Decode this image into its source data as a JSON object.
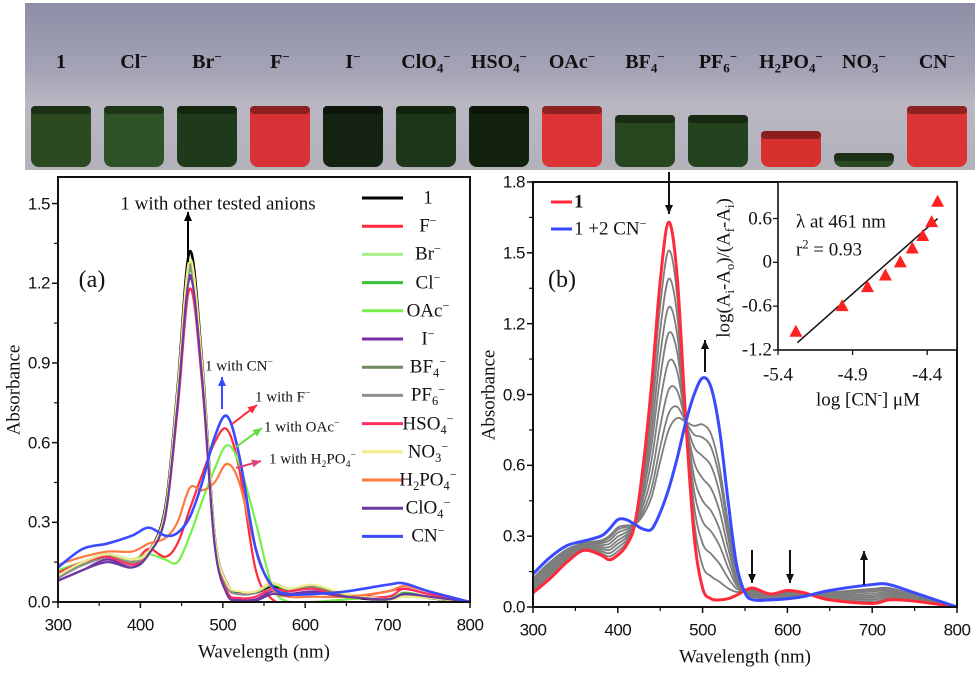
{
  "photo": {
    "tubes": [
      {
        "label": [
          {
            "t": "1"
          }
        ],
        "color": "#2b4a22"
      },
      {
        "label": [
          {
            "t": "Cl"
          },
          {
            "sup": "−"
          }
        ],
        "color": "#2f5226"
      },
      {
        "label": [
          {
            "t": "Br"
          },
          {
            "sup": "−"
          }
        ],
        "color": "#1f3a1a"
      },
      {
        "label": [
          {
            "t": "F"
          },
          {
            "sup": "−"
          }
        ],
        "color": "#d83236"
      },
      {
        "label": [
          {
            "t": "I"
          },
          {
            "sup": "−"
          }
        ],
        "color": "#142212"
      },
      {
        "label": [
          {
            "t": "ClO"
          },
          {
            "sub": "4"
          },
          {
            "sup": "−"
          }
        ],
        "color": "#1d3518"
      },
      {
        "label": [
          {
            "t": "HSO"
          },
          {
            "sub": "4"
          },
          {
            "sup": "−"
          }
        ],
        "color": "#13210f"
      },
      {
        "label": [
          {
            "t": "OAc"
          },
          {
            "sup": "−"
          }
        ],
        "color": "#dc3434"
      },
      {
        "label": [
          {
            "t": "BF"
          },
          {
            "sub": "4"
          },
          {
            "sup": "−"
          }
        ],
        "color": "#27461f"
      },
      {
        "label": [
          {
            "t": "PF"
          },
          {
            "sub": "6"
          },
          {
            "sup": "−"
          }
        ],
        "color": "#24421d"
      },
      {
        "label": [
          {
            "t": "H"
          },
          {
            "sub": "2"
          },
          {
            "t": "PO"
          },
          {
            "sub": "4"
          },
          {
            "sup": "−"
          }
        ],
        "color": "#d6302f"
      },
      {
        "label": [
          {
            "t": "NO"
          },
          {
            "sub": "3"
          },
          {
            "sup": "−"
          }
        ],
        "color": "#2a4a22"
      },
      {
        "label": [
          {
            "t": "CN"
          },
          {
            "sup": "−"
          }
        ],
        "color": "#da3434"
      }
    ]
  },
  "chart_data": [
    {
      "type": "line",
      "panel_label": "(a)",
      "xlabel": "Wavelength (nm)",
      "ylabel": "Absorbance",
      "xlim": [
        300,
        800
      ],
      "ylim": [
        0,
        1.6
      ],
      "xticks": [
        300,
        400,
        500,
        600,
        700,
        800
      ],
      "yticks": [
        "0.0",
        "0.3",
        "0.6",
        "0.9",
        "1.2",
        "1.5"
      ],
      "legend_position": "right",
      "x": [
        300,
        330,
        360,
        390,
        410,
        430,
        445,
        460,
        475,
        490,
        505,
        520,
        540,
        560,
        580,
        610,
        650,
        700,
        720,
        750,
        800
      ],
      "series": [
        {
          "name": [
            {
              "t": "1"
            }
          ],
          "color": "#000000",
          "values": [
            0.1,
            0.14,
            0.17,
            0.15,
            0.19,
            0.35,
            0.8,
            1.32,
            0.9,
            0.25,
            0.07,
            0.035,
            0.035,
            0.06,
            0.045,
            0.055,
            0.02,
            0.01,
            0.03,
            0.015,
            0
          ]
        },
        {
          "name": [
            {
              "t": "F"
            },
            {
              "sup": "−"
            }
          ],
          "color": "#ff2a3a",
          "values": [
            0.11,
            0.15,
            0.17,
            0.15,
            0.2,
            0.17,
            0.22,
            0.35,
            0.48,
            0.6,
            0.65,
            0.5,
            0.12,
            0.01,
            0,
            0,
            0.01,
            0.04,
            0.05,
            0.03,
            0
          ]
        },
        {
          "name": [
            {
              "t": "Br"
            },
            {
              "sup": "−"
            }
          ],
          "color": "#a6ee86",
          "values": [
            0.09,
            0.15,
            0.18,
            0.16,
            0.19,
            0.34,
            0.78,
            1.28,
            0.88,
            0.24,
            0.06,
            0.03,
            0.04,
            0.07,
            0.05,
            0.06,
            0.03,
            0.01,
            0.03,
            0.02,
            0
          ]
        },
        {
          "name": [
            {
              "t": "Cl"
            },
            {
              "sup": "−"
            }
          ],
          "color": "#35c035",
          "values": [
            0.1,
            0.14,
            0.17,
            0.15,
            0.18,
            0.33,
            0.76,
            1.25,
            0.86,
            0.23,
            0.06,
            0.03,
            0.035,
            0.065,
            0.045,
            0.055,
            0.025,
            0.01,
            0.035,
            0.02,
            0
          ]
        },
        {
          "name": [
            {
              "t": "OAc"
            },
            {
              "sup": "−"
            }
          ],
          "color": "#78f04c",
          "values": [
            0.12,
            0.15,
            0.17,
            0.16,
            0.18,
            0.16,
            0.15,
            0.25,
            0.38,
            0.5,
            0.59,
            0.52,
            0.3,
            0.06,
            0,
            0,
            0.01,
            0.02,
            0.03,
            0.02,
            0
          ]
        },
        {
          "name": [
            {
              "t": "I"
            },
            {
              "sup": "−"
            }
          ],
          "color": "#7b2fa6",
          "values": [
            0.08,
            0.12,
            0.16,
            0.13,
            0.18,
            0.33,
            0.75,
            1.23,
            0.85,
            0.22,
            0.04,
            0.01,
            0.01,
            0.04,
            0.03,
            0.04,
            0.02,
            0.01,
            0.03,
            0.02,
            0
          ]
        },
        {
          "name": [
            {
              "t": "BF"
            },
            {
              "sub": "4"
            },
            {
              "sup": "−"
            }
          ],
          "color": "#6e8a5e",
          "values": [
            0.1,
            0.15,
            0.18,
            0.16,
            0.19,
            0.34,
            0.78,
            1.27,
            0.88,
            0.24,
            0.06,
            0.03,
            0.04,
            0.07,
            0.05,
            0.06,
            0.03,
            0.01,
            0.02,
            0.015,
            0
          ]
        },
        {
          "name": [
            {
              "t": "PF"
            },
            {
              "sub": "6"
            },
            {
              "sup": "−"
            }
          ],
          "color": "#8f8f8f",
          "values": [
            0.09,
            0.14,
            0.17,
            0.15,
            0.19,
            0.34,
            0.77,
            1.26,
            0.87,
            0.23,
            0.06,
            0.03,
            0.035,
            0.07,
            0.05,
            0.06,
            0.03,
            0.01,
            0.025,
            0.015,
            0
          ]
        },
        {
          "name": [
            {
              "t": "HSO"
            },
            {
              "sub": "4"
            },
            {
              "sup": "−"
            }
          ],
          "color": "#ff3060",
          "values": [
            0.11,
            0.15,
            0.17,
            0.14,
            0.18,
            0.32,
            0.72,
            1.18,
            0.82,
            0.22,
            0.04,
            0.015,
            0.02,
            0.05,
            0.04,
            0.05,
            0.02,
            0.02,
            0.05,
            0.03,
            0
          ]
        },
        {
          "name": [
            {
              "t": "NO"
            },
            {
              "sub": "3"
            },
            {
              "sup": "−"
            }
          ],
          "color": "#f2ee8c",
          "values": [
            0.1,
            0.15,
            0.18,
            0.16,
            0.19,
            0.34,
            0.79,
            1.29,
            0.89,
            0.25,
            0.07,
            0.04,
            0.04,
            0.07,
            0.05,
            0.065,
            0.03,
            0.01,
            0.02,
            0.015,
            0
          ]
        },
        {
          "name": [
            {
              "t": "H"
            },
            {
              "sub": "2"
            },
            {
              "t": "PO"
            },
            {
              "sub": "4"
            },
            {
              "sup": "−"
            }
          ],
          "color": "#ff7a40",
          "values": [
            0.14,
            0.17,
            0.19,
            0.19,
            0.22,
            0.24,
            0.3,
            0.43,
            0.42,
            0.45,
            0.52,
            0.45,
            0.2,
            0.05,
            0.02,
            0.02,
            0.02,
            0.04,
            0.06,
            0.04,
            0
          ]
        },
        {
          "name": [
            {
              "t": "ClO"
            },
            {
              "sub": "4"
            },
            {
              "sup": "−"
            }
          ],
          "color": "#6a3aa0",
          "values": [
            0.08,
            0.12,
            0.15,
            0.13,
            0.18,
            0.32,
            0.74,
            1.22,
            0.84,
            0.22,
            0.03,
            0.005,
            0.005,
            0.03,
            0.025,
            0.035,
            0.02,
            0.01,
            0.03,
            0.02,
            0
          ]
        },
        {
          "name": [
            {
              "t": "CN"
            },
            {
              "sup": "−"
            }
          ],
          "color": "#3a4aff",
          "values": [
            0.13,
            0.2,
            0.22,
            0.25,
            0.28,
            0.25,
            0.26,
            0.32,
            0.45,
            0.62,
            0.7,
            0.55,
            0.2,
            0.06,
            0.03,
            0.03,
            0.04,
            0.065,
            0.07,
            0.04,
            0
          ]
        }
      ],
      "annotations": [
        {
          "text": [
            {
              "t": "1 with other tested anions"
            }
          ],
          "color": "#000000"
        },
        {
          "text": [
            {
              "t": "1 with CN"
            },
            {
              "sup": "−"
            }
          ],
          "color": "#3a4aff"
        },
        {
          "text": [
            {
              "t": "1 with F"
            },
            {
              "sup": "−"
            }
          ],
          "color": "#ff2a3a"
        },
        {
          "text": [
            {
              "t": "1 with OAc"
            },
            {
              "sup": "−"
            }
          ],
          "color": "#60e040"
        },
        {
          "text": [
            {
              "t": "1 with H"
            },
            {
              "sub": "2"
            },
            {
              "t": "PO"
            },
            {
              "sub": "4"
            },
            {
              "sup": "−"
            }
          ],
          "color": "#e0407a"
        }
      ]
    },
    {
      "type": "line",
      "panel_label": "(b)",
      "xlabel": "Wavelength (nm)",
      "ylabel": "Absorbance",
      "xlim": [
        300,
        800
      ],
      "ylim": [
        0,
        1.8
      ],
      "xticks": [
        300,
        400,
        500,
        600,
        700,
        800
      ],
      "yticks": [
        "0.0",
        "0.3",
        "0.6",
        "0.9",
        "1.2",
        "1.5",
        "1.8"
      ],
      "legend_position": "top-left",
      "x": [
        300,
        320,
        340,
        360,
        380,
        390,
        400,
        410,
        420,
        430,
        440,
        450,
        460,
        470,
        480,
        490,
        500,
        510,
        520,
        530,
        540,
        550,
        560,
        580,
        600,
        620,
        650,
        700,
        720,
        750,
        800
      ],
      "series": [
        {
          "name": [
            {
              "t": "1"
            }
          ],
          "color": "#ff2a3a",
          "values": [
            0.06,
            0.12,
            0.19,
            0.24,
            0.22,
            0.2,
            0.22,
            0.26,
            0.35,
            0.6,
            0.95,
            1.38,
            1.63,
            1.4,
            0.8,
            0.3,
            0.08,
            0.035,
            0.03,
            0.035,
            0.05,
            0.07,
            0.08,
            0.055,
            0.07,
            0.06,
            0.03,
            0.015,
            0.03,
            0.025,
            0
          ]
        },
        {
          "name": [
            {
              "t": "1"
            },
            {
              "t": " +2 CN"
            },
            {
              "sup": "−"
            }
          ],
          "color": "#3a4aff",
          "values": [
            0.14,
            0.21,
            0.26,
            0.28,
            0.3,
            0.33,
            0.37,
            0.37,
            0.35,
            0.33,
            0.33,
            0.4,
            0.5,
            0.63,
            0.78,
            0.9,
            0.97,
            0.93,
            0.75,
            0.45,
            0.18,
            0.06,
            0.03,
            0.03,
            0.035,
            0.045,
            0.07,
            0.095,
            0.095,
            0.06,
            0
          ]
        }
      ],
      "intermediate_color": "#7d7d7d",
      "intermediate_peaks_461nm": [
        1.51,
        1.39,
        1.27,
        1.16,
        1.04,
        0.92,
        0.82,
        0.75
      ],
      "inset": {
        "type": "scatter",
        "xlabel": [
          {
            "t": "log [CN"
          },
          {
            "sup": "-"
          },
          {
            "t": "] μM"
          }
        ],
        "ylabel": [
          {
            "t": "log(A"
          },
          {
            "sub": "i"
          },
          {
            "t": "-A"
          },
          {
            "sub": "o"
          },
          {
            "t": ")/(A"
          },
          {
            "sub": "f"
          },
          {
            "t": "-A"
          },
          {
            "sub": "i"
          },
          {
            "t": ")"
          }
        ],
        "xlim": [
          -5.4,
          -4.2
        ],
        "ylim": [
          -1.2,
          1.1
        ],
        "xticks": [
          "-5.4",
          "-4.9",
          "-4.4"
        ],
        "yticks": [
          "-1.2",
          "-0.6",
          "0",
          "0.6"
        ],
        "marker_color": "#ff2020",
        "points": [
          [
            -5.28,
            -0.95
          ],
          [
            -4.97,
            -0.6
          ],
          [
            -4.8,
            -0.34
          ],
          [
            -4.68,
            -0.18
          ],
          [
            -4.58,
            0.0
          ],
          [
            -4.5,
            0.19
          ],
          [
            -4.43,
            0.36
          ],
          [
            -4.37,
            0.55
          ],
          [
            -4.33,
            0.83
          ]
        ],
        "fit_line": [
          [
            -5.27,
            -1.1
          ],
          [
            -4.33,
            0.6
          ]
        ],
        "annotation_1": [
          {
            "t": "λ at 461 nm"
          }
        ],
        "annotation_2": [
          {
            "t": "r"
          },
          {
            "sup": "2"
          },
          {
            "t": " =  0.93"
          }
        ]
      }
    }
  ]
}
